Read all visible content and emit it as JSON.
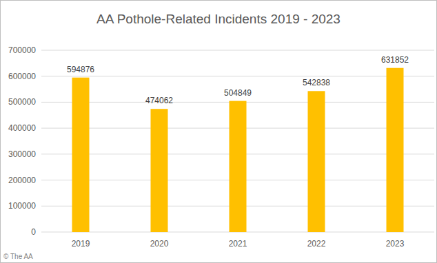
{
  "chart_data": {
    "type": "bar",
    "title": "AA Pothole-Related Incidents 2019 - 2023",
    "categories": [
      "2019",
      "2020",
      "2021",
      "2022",
      "2023"
    ],
    "values": [
      594876,
      474062,
      504849,
      542838,
      631852
    ],
    "color": "#ffc000",
    "ylim": [
      0,
      700000
    ],
    "yticks": [
      0,
      100000,
      200000,
      300000,
      400000,
      500000,
      600000,
      700000
    ],
    "grid": true,
    "data_labels": true,
    "source": "© The AA"
  }
}
